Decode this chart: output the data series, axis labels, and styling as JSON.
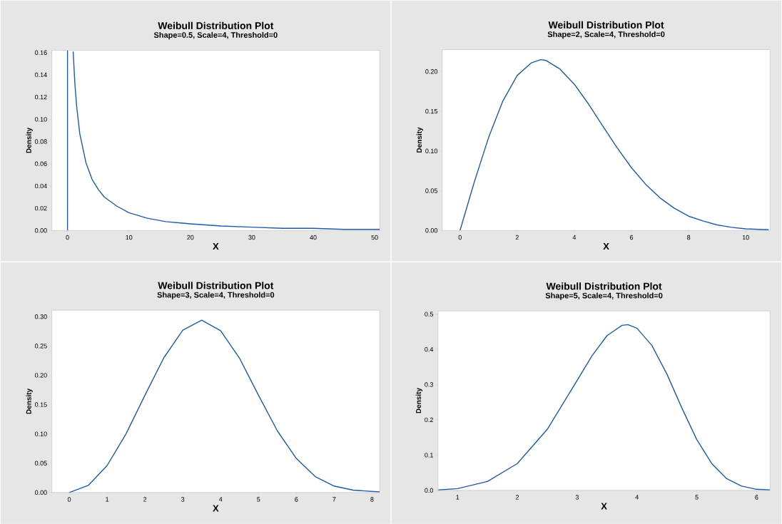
{
  "chart_data": [
    {
      "type": "line",
      "title": "Weibull Distribution Plot",
      "subtitle": "Shape=0.5, Scale=4, Threshold=0",
      "xlabel": "X",
      "ylabel": "Density",
      "color": "#1f5aa6",
      "x": [
        0,
        0,
        0.5,
        0.92,
        1.2,
        1.5,
        2,
        3,
        4,
        5,
        6,
        8,
        10,
        13,
        16,
        20,
        25,
        30,
        35,
        40,
        45,
        50.8
      ],
      "values": [
        0,
        0.162,
        null,
        0.161,
        0.132,
        0.111,
        0.087,
        0.061,
        0.046,
        0.037,
        0.03,
        0.022,
        0.016,
        0.011,
        0.008,
        0.006,
        0.004,
        0.003,
        0.002,
        0.002,
        0.001,
        0.001
      ],
      "xlim": [
        -2.55,
        50.8
      ],
      "ylim": [
        0,
        0.162
      ],
      "xticks": [
        0,
        10,
        20,
        30,
        40,
        50
      ],
      "yticks": [
        {
          "value": 0,
          "label": "0.00"
        },
        {
          "value": 0.02,
          "label": "0.02"
        },
        {
          "value": 0.04,
          "label": "0.04"
        },
        {
          "value": 0.06,
          "label": "0.06"
        },
        {
          "value": 0.08,
          "label": "0.08"
        },
        {
          "value": 0.1,
          "label": "0.10"
        },
        {
          "value": 0.12,
          "label": "0.12"
        },
        {
          "value": 0.14,
          "label": "0.14"
        },
        {
          "value": 0.16,
          "label": "0.16"
        }
      ]
    },
    {
      "type": "line",
      "title": "Weibull Distribution Plot",
      "subtitle": "Shape=2, Scale=4, Threshold=0",
      "xlabel": "X",
      "ylabel": "Density",
      "color": "#1f5aa6",
      "x": [
        0,
        0.5,
        1,
        1.5,
        2,
        2.5,
        2.83,
        3,
        3.5,
        4,
        4.5,
        5,
        5.5,
        6,
        6.5,
        7,
        7.5,
        8,
        8.5,
        9,
        9.5,
        10,
        10.8
      ],
      "values": [
        0,
        0.061,
        0.117,
        0.163,
        0.195,
        0.211,
        0.215,
        0.214,
        0.203,
        0.184,
        0.159,
        0.131,
        0.104,
        0.079,
        0.058,
        0.041,
        0.028,
        0.018,
        0.012,
        0.007,
        0.004,
        0.002,
        0.001
      ],
      "xlim": [
        -0.62,
        10.85
      ],
      "ylim": [
        0,
        0.2275
      ],
      "xticks": [
        0,
        2,
        4,
        6,
        8,
        10
      ],
      "yticks": [
        {
          "value": 0,
          "label": "0.00"
        },
        {
          "value": 0.05,
          "label": "0.05"
        },
        {
          "value": 0.1,
          "label": "0.10"
        },
        {
          "value": 0.15,
          "label": "0.15"
        },
        {
          "value": 0.2,
          "label": "0.20"
        }
      ]
    },
    {
      "type": "line",
      "title": "Weibull Distribution Plot",
      "subtitle": "Shape=3, Scale=4, Threshold=0",
      "xlabel": "X",
      "ylabel": "Density",
      "color": "#1f5aa6",
      "x": [
        0,
        0.5,
        1,
        1.5,
        2,
        2.5,
        3,
        3.5,
        4,
        4.5,
        5,
        5.5,
        6,
        6.5,
        7,
        7.5,
        8.2
      ],
      "values": [
        0,
        0.012,
        0.046,
        0.1,
        0.166,
        0.23,
        0.277,
        0.294,
        0.276,
        0.229,
        0.166,
        0.105,
        0.058,
        0.027,
        0.011,
        0.004,
        0.001
      ],
      "xlim": [
        -0.46,
        8.2
      ],
      "ylim": [
        0,
        0.311
      ],
      "xticks": [
        0,
        1,
        2,
        3,
        4,
        5,
        6,
        7,
        8
      ],
      "yticks": [
        {
          "value": 0,
          "label": "0.00"
        },
        {
          "value": 0.05,
          "label": "0.05"
        },
        {
          "value": 0.1,
          "label": "0.10"
        },
        {
          "value": 0.15,
          "label": "0.15"
        },
        {
          "value": 0.2,
          "label": "0.20"
        },
        {
          "value": 0.25,
          "label": "0.25"
        },
        {
          "value": 0.3,
          "label": "0.30"
        }
      ]
    },
    {
      "type": "line",
      "title": "Weibull Distribution Plot",
      "subtitle": "Shape=5, Scale=4, Threshold=0",
      "xlabel": "X",
      "ylabel": "Density",
      "color": "#1f5aa6",
      "x": [
        0.68,
        1,
        1.5,
        2,
        2.5,
        3,
        3.25,
        3.5,
        3.75,
        3.85,
        4,
        4.25,
        4.5,
        4.75,
        5,
        5.25,
        5.5,
        5.75,
        6,
        6.22
      ],
      "values": [
        0.001,
        0.005,
        0.025,
        0.076,
        0.173,
        0.312,
        0.382,
        0.439,
        0.468,
        0.47,
        0.46,
        0.411,
        0.33,
        0.234,
        0.144,
        0.076,
        0.033,
        0.012,
        0.003,
        0.001
      ],
      "xlim": [
        0.675,
        6.225
      ],
      "ylim": [
        0,
        0.509
      ],
      "xticks": [
        1,
        2,
        3,
        4,
        5,
        6
      ],
      "yticks": [
        {
          "value": 0,
          "label": "0.0"
        },
        {
          "value": 0.1,
          "label": "0.1"
        },
        {
          "value": 0.2,
          "label": "0.2"
        },
        {
          "value": 0.3,
          "label": "0.3"
        },
        {
          "value": 0.4,
          "label": "0.4"
        },
        {
          "value": 0.5,
          "label": "0.5"
        }
      ]
    }
  ]
}
